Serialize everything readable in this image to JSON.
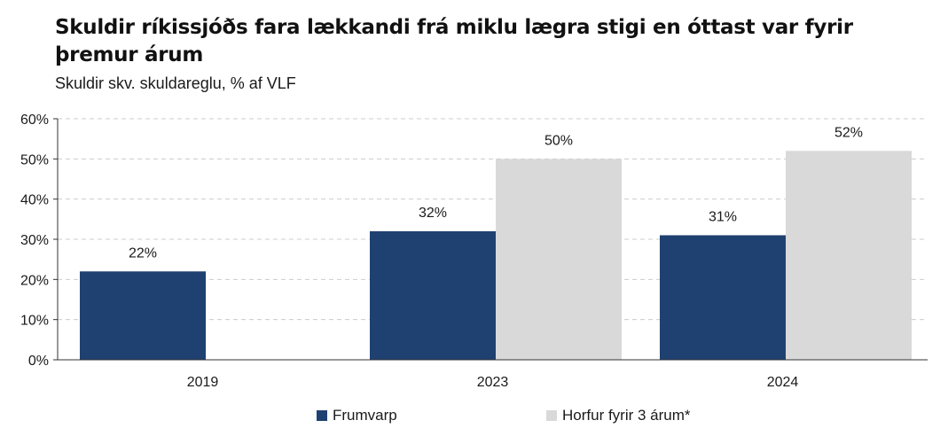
{
  "title": "Skuldir ríkissjóðs fara lækkandi frá miklu lægra stigi en óttast var fyrir þremur árum",
  "subtitle": "Skuldir skv. skuldareglu, % af VLF",
  "colors": {
    "series1": "#1f4171",
    "series2": "#d9d9d9",
    "grid": "#cccccc",
    "axis": "#333333"
  },
  "chart_data": {
    "type": "bar",
    "categories": [
      "2019",
      "2023",
      "2024"
    ],
    "series": [
      {
        "name": "Frumvarp",
        "values": [
          22,
          32,
          31
        ],
        "labels": [
          "22%",
          "32%",
          "31%"
        ]
      },
      {
        "name": "Horfur fyrir 3 árum*",
        "values": [
          null,
          50,
          52
        ],
        "labels": [
          "",
          "50%",
          "52%"
        ]
      }
    ],
    "ylim": [
      0,
      60
    ],
    "yticks": [
      0,
      10,
      20,
      30,
      40,
      50,
      60
    ],
    "ytick_labels": [
      "0%",
      "10%",
      "20%",
      "30%",
      "40%",
      "50%",
      "60%"
    ],
    "grid": true,
    "legend_position": "bottom"
  }
}
